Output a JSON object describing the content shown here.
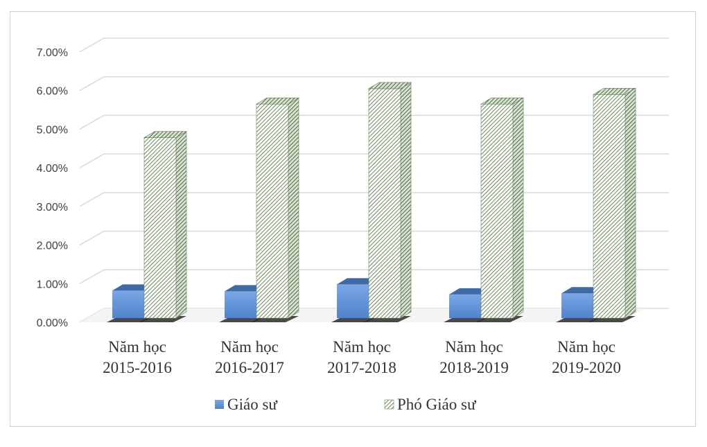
{
  "chart_data": {
    "type": "bar",
    "style": "3d-clustered-column",
    "categories": [
      [
        "Năm học",
        "2015-2016"
      ],
      [
        "Năm học",
        "2016-2017"
      ],
      [
        "Năm học",
        "2017-2018"
      ],
      [
        "Năm học",
        "2018-2019"
      ],
      [
        "Năm học",
        "2019-2020"
      ]
    ],
    "series": [
      {
        "name": "Giáo sư",
        "values": [
          0.82,
          0.8,
          0.98,
          0.72,
          0.75
        ],
        "color": "#5b8fd6",
        "pattern": "solid"
      },
      {
        "name": "Phó Giáo sư",
        "values": [
          4.78,
          5.65,
          6.05,
          5.65,
          5.9
        ],
        "color": "#6a8a5a",
        "pattern": "diagonal-hatch"
      }
    ],
    "ylim": [
      0,
      7
    ],
    "yticks": [
      "0.00%",
      "1.00%",
      "2.00%",
      "3.00%",
      "4.00%",
      "5.00%",
      "6.00%",
      "7.00%"
    ],
    "grid": true,
    "legend_position": "bottom",
    "title": "",
    "xlabel": "",
    "ylabel": ""
  }
}
